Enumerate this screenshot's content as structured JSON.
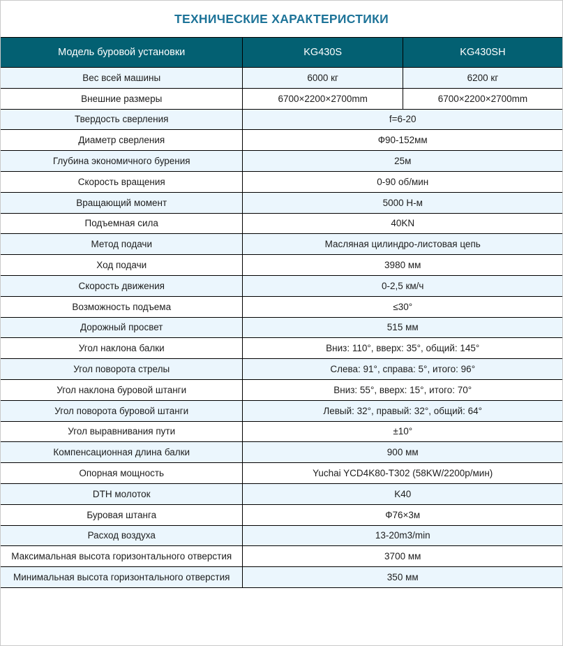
{
  "page": {
    "title": "ТЕХНИЧЕСКИЕ ХАРАКТЕРИСТИКИ"
  },
  "colors": {
    "header_bg": "#036072",
    "alt_row_bg": "#ebf6fd",
    "title_color": "#1d7398",
    "grid_border": "#000000"
  },
  "table": {
    "header": {
      "model_label": "Модель буровой установки",
      "models": [
        "KG430S",
        "KG430SH"
      ]
    },
    "rows": [
      {
        "label": "Вес всей машины",
        "values": [
          "6000 кг",
          "6200 кг"
        ]
      },
      {
        "label": "Внешние размеры",
        "values": [
          "6700×2200×2700mm",
          "6700×2200×2700mm"
        ]
      },
      {
        "label": "Твердость сверления",
        "value": "f=6-20"
      },
      {
        "label": "Диаметр сверления",
        "value": "Ф90-152мм"
      },
      {
        "label": "Глубина экономичного бурения",
        "value": "25м"
      },
      {
        "label": "Скорость вращения",
        "value": "0-90 об/мин"
      },
      {
        "label": "Вращающий момент",
        "value": "5000 Н-м"
      },
      {
        "label": "Подъемная сила",
        "value": "40KN"
      },
      {
        "label": "Метод подачи",
        "value": "Масляная цилиндро-листовая цепь"
      },
      {
        "label": "Ход подачи",
        "value": "3980 мм"
      },
      {
        "label": "Скорость движения",
        "value": "0-2,5 км/ч"
      },
      {
        "label": "Возможность подъема",
        "value": "≤30°"
      },
      {
        "label": "Дорожный просвет",
        "value": "515 мм"
      },
      {
        "label": "Угол наклона балки",
        "value": "Вниз: 110°, вверх: 35°, общий: 145°"
      },
      {
        "label": "Угол поворота стрелы",
        "value": "Слева: 91°, справа: 5°, итого: 96°"
      },
      {
        "label": "Угол наклона буровой штанги",
        "value": "Вниз: 55°, вверх: 15°, итого: 70°"
      },
      {
        "label": "Угол поворота буровой штанги",
        "value": "Левый: 32°, правый: 32°, общий: 64°"
      },
      {
        "label": "Угол выравнивания пути",
        "value": "±10°"
      },
      {
        "label": "Компенсационная длина балки",
        "value": "900 мм"
      },
      {
        "label": "Опорная мощность",
        "value": "Yuchai YCD4K80-T302 (58KW/2200р/мин)"
      },
      {
        "label": "DTH молоток",
        "value": "K40"
      },
      {
        "label": "Буровая штанга",
        "value": "Ф76×3м"
      },
      {
        "label": "Расход воздуха",
        "value": "13-20m3/min"
      },
      {
        "label": "Максимальная высота горизонтального отверстия",
        "value": "3700 мм"
      },
      {
        "label": "Минимальная высота горизонтального отверстия",
        "value": "350 мм"
      }
    ]
  }
}
